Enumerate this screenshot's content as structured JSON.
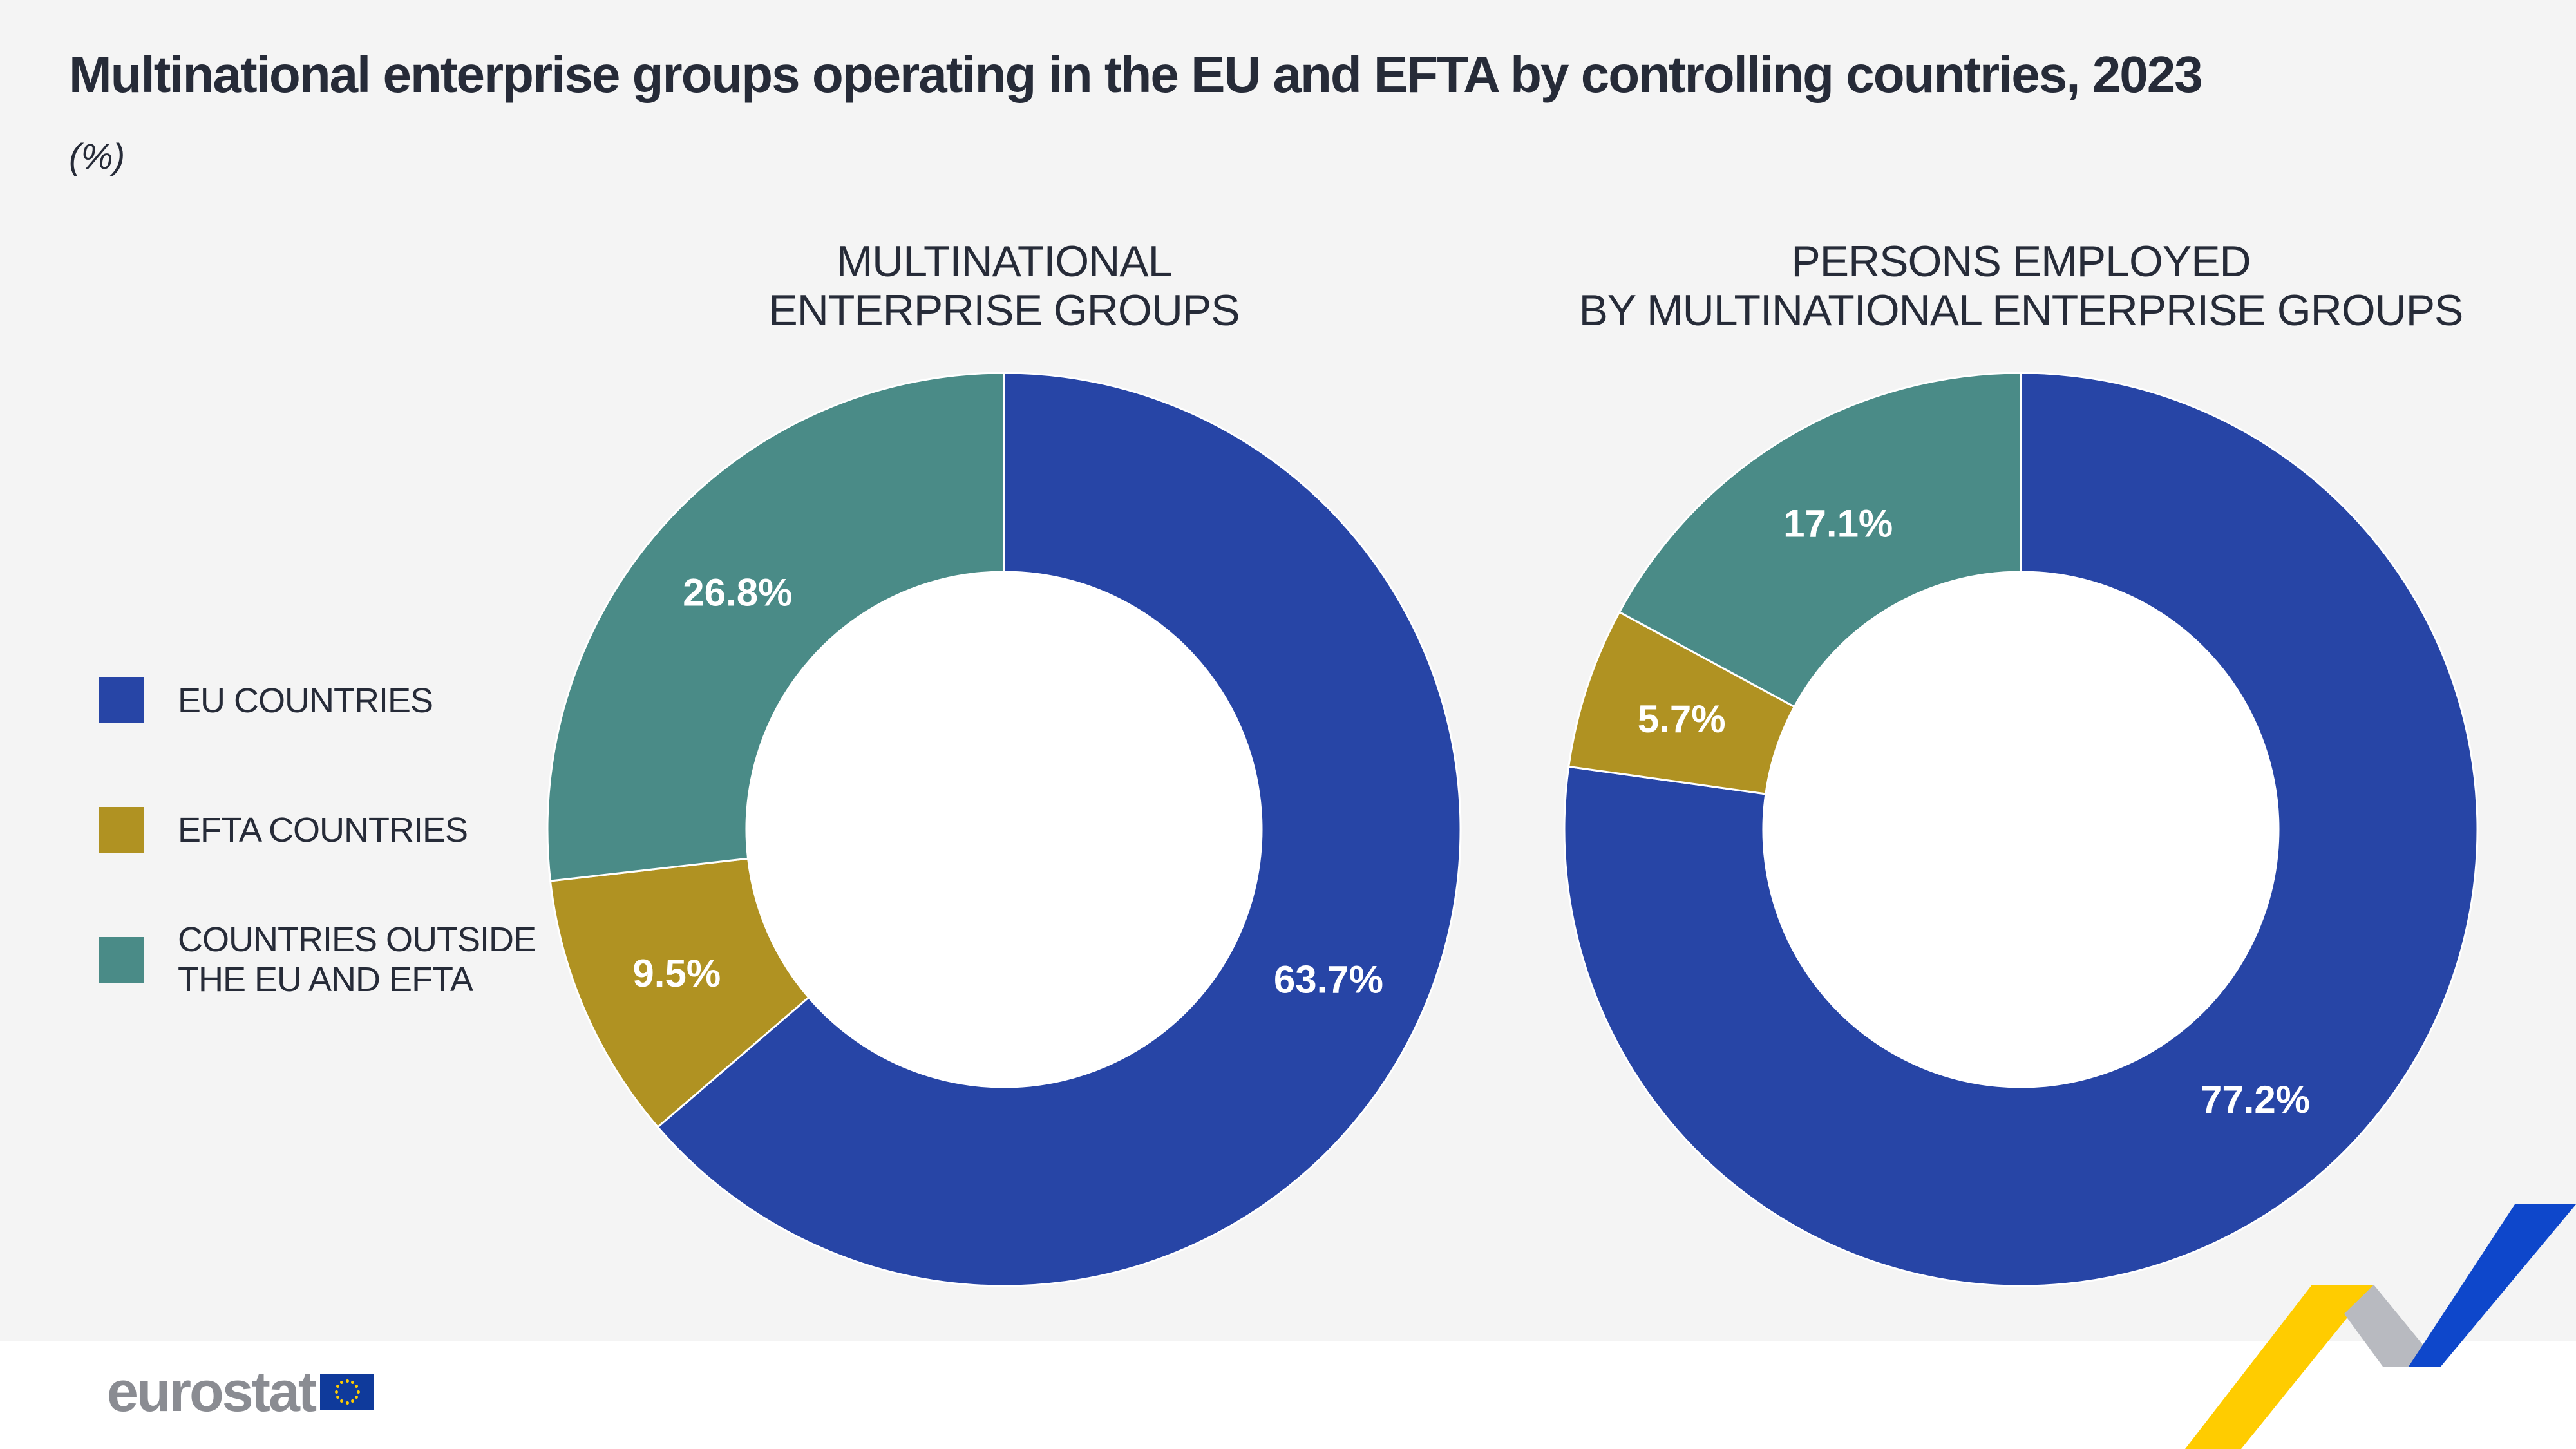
{
  "title": "Multinational enterprise groups operating in the EU and EFTA by controlling countries, 2023",
  "unit": "(%)",
  "legend": [
    {
      "label": "EU COUNTRIES",
      "color": "#2745a6"
    },
    {
      "label": "EFTA COUNTRIES",
      "color": "#b09222"
    },
    {
      "label": "COUNTRIES OUTSIDE\nTHE EU AND EFTA",
      "color": "#4a8b87"
    }
  ],
  "chart_data": [
    {
      "type": "pie",
      "subtype": "donut",
      "title_lines": [
        "MULTINATIONAL",
        "ENTERPRISE GROUPS"
      ],
      "categories": [
        "EU COUNTRIES",
        "EFTA COUNTRIES",
        "COUNTRIES OUTSIDE THE EU AND EFTA"
      ],
      "values": [
        63.7,
        9.5,
        26.8
      ],
      "labels": [
        "63.7%",
        "9.5%",
        "26.8%"
      ]
    },
    {
      "type": "pie",
      "subtype": "donut",
      "title_lines": [
        "PERSONS EMPLOYED",
        "BY MULTINATIONAL ENTERPRISE GROUPS"
      ],
      "categories": [
        "EU COUNTRIES",
        "EFTA COUNTRIES",
        "COUNTRIES OUTSIDE THE EU AND EFTA"
      ],
      "values": [
        77.2,
        5.7,
        17.1
      ],
      "labels": [
        "77.2%",
        "5.7%",
        "17.1%"
      ]
    }
  ],
  "logo": {
    "text": "eurostat"
  }
}
